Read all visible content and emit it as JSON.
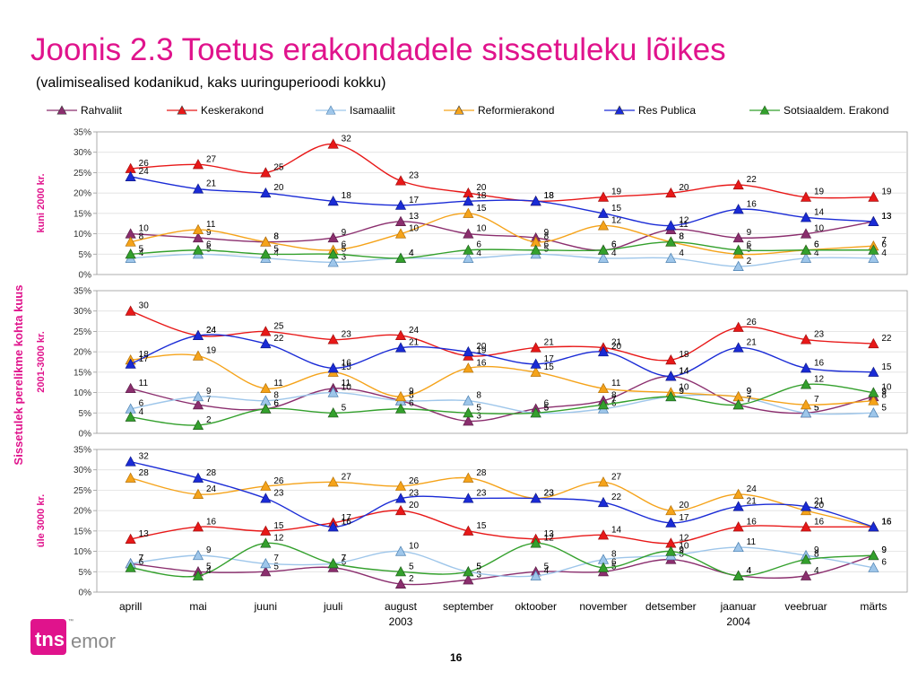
{
  "title": "Joonis 2.3 Toetus erakondadele sissetuleku lõikes",
  "subtitle": "(valimisealised kodanikud, kaks uuringuperioodi kokku)",
  "page_number": "16",
  "logo": {
    "tns": "tns",
    "emor": "emor",
    "tm": "™"
  },
  "chart_data": {
    "type": "line",
    "y_axis_title": "Sissetulek perelikme kohta kuus",
    "y_ticks": [
      "0%",
      "5%",
      "10%",
      "15%",
      "20%",
      "25%",
      "30%",
      "35%"
    ],
    "ylim": [
      0,
      35
    ],
    "x_labels": [
      [
        "aprill"
      ],
      [
        "mai"
      ],
      [
        "juuni"
      ],
      [
        "juuli"
      ],
      [
        "august",
        "2003"
      ],
      [
        "september"
      ],
      [
        "oktoober"
      ],
      [
        "november"
      ],
      [
        "detsember"
      ],
      [
        "jaanuar",
        "2004"
      ],
      [
        "veebruar"
      ],
      [
        "märts"
      ]
    ],
    "legend": [
      {
        "name": "Rahvaliit",
        "color": "#8b2e6e"
      },
      {
        "name": "Keskerakond",
        "color": "#e81818"
      },
      {
        "name": "Isamaaliit",
        "color": "#9ec6ea"
      },
      {
        "name": "Reformierakond",
        "color": "#f5a31a"
      },
      {
        "name": "Res Publica",
        "color": "#1a2bd6"
      },
      {
        "name": "Sotsiaaldem. Erakond",
        "color": "#33a02c"
      }
    ],
    "panels": [
      {
        "label": "kuni 2000 kr.",
        "series": [
          [
            10,
            9,
            8,
            9,
            13,
            10,
            9,
            6,
            11,
            9,
            10,
            13
          ],
          [
            26,
            27,
            25,
            32,
            23,
            20,
            18,
            19,
            20,
            22,
            19,
            19
          ],
          [
            4,
            5,
            4,
            3,
            4,
            4,
            5,
            4,
            4,
            2,
            4,
            4
          ],
          [
            8,
            11,
            8,
            6,
            10,
            15,
            8,
            12,
            8,
            5,
            6,
            7
          ],
          [
            24,
            21,
            20,
            18,
            17,
            18,
            18,
            15,
            12,
            16,
            14,
            13
          ],
          [
            5,
            6,
            5,
            5,
            4,
            6,
            6,
            6,
            8,
            6,
            6,
            6
          ]
        ]
      },
      {
        "label": "2001-3000 kr.",
        "series": [
          [
            11,
            7,
            6,
            11,
            8,
            3,
            6,
            8,
            14,
            7,
            5,
            9
          ],
          [
            30,
            24,
            25,
            23,
            24,
            19,
            21,
            21,
            18,
            26,
            23,
            22
          ],
          [
            6,
            9,
            8,
            10,
            8,
            8,
            5,
            6,
            9,
            9,
            5,
            5
          ],
          [
            18,
            19,
            11,
            15,
            9,
            16,
            15,
            11,
            10,
            9,
            7,
            8
          ],
          [
            17,
            24,
            22,
            16,
            21,
            20,
            17,
            20,
            14,
            21,
            16,
            15
          ],
          [
            4,
            2,
            6,
            5,
            6,
            5,
            5,
            7,
            9,
            7,
            12,
            10
          ]
        ]
      },
      {
        "label": "üle 3000 kr.",
        "series": [
          [
            7,
            5,
            5,
            6,
            2,
            3,
            5,
            5,
            8,
            4,
            4,
            9
          ],
          [
            13,
            16,
            15,
            17,
            20,
            15,
            13,
            14,
            12,
            16,
            16,
            16
          ],
          [
            7,
            9,
            7,
            7,
            10,
            5,
            4,
            8,
            9,
            11,
            9,
            6
          ],
          [
            28,
            24,
            26,
            27,
            26,
            28,
            23,
            27,
            20,
            24,
            20,
            16
          ],
          [
            32,
            28,
            23,
            16,
            23,
            23,
            23,
            22,
            17,
            21,
            21,
            16
          ],
          [
            6,
            4,
            12,
            7,
            5,
            5,
            12,
            6,
            10,
            4,
            8,
            9
          ]
        ]
      }
    ]
  }
}
